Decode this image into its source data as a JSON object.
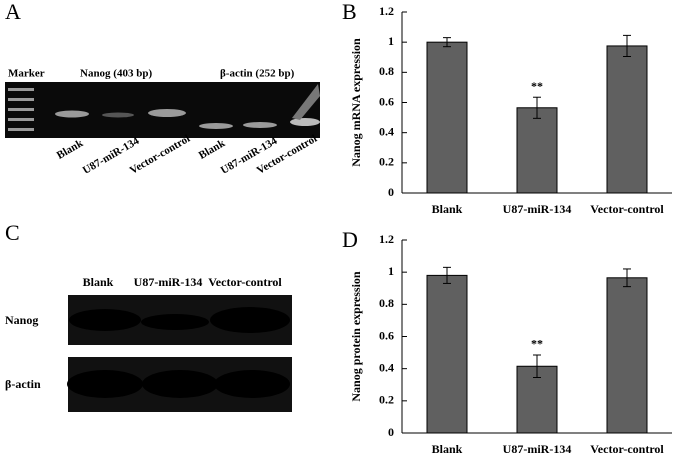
{
  "panels": {
    "A": {
      "letter": "A",
      "marker": "Marker",
      "gene1": "Nanog (403 bp)",
      "gene2": "β-actin (252 bp)",
      "lanes": [
        "Blank",
        "U87-miR-134",
        "Vector-control",
        "Blank",
        "U87-miR-134",
        "Vector-control"
      ]
    },
    "C": {
      "letter": "C",
      "lanes": [
        "Blank",
        "U87-miR-134",
        "Vector-control"
      ],
      "rows": [
        "Nanog",
        "β-actin"
      ]
    }
  },
  "chart_data": [
    {
      "type": "bar",
      "panel_label": "B",
      "y_label": "Nanog mRNA expression",
      "categories": [
        "Blank",
        "U87-miR-134",
        "Vector-control"
      ],
      "values": [
        1.0,
        0.565,
        0.975
      ],
      "errors": [
        0.03,
        0.07,
        0.07
      ],
      "annotations": [
        null,
        "**",
        null
      ],
      "color": "#606060",
      "ylim": [
        0,
        1.2
      ],
      "yticks": [
        0,
        0.2,
        0.4,
        0.6,
        0.8,
        1,
        1.2
      ]
    },
    {
      "type": "bar",
      "panel_label": "D",
      "y_label": "Nanog protein expression",
      "categories": [
        "Blank",
        "U87-miR-134",
        "Vector-control"
      ],
      "values": [
        0.98,
        0.415,
        0.965
      ],
      "errors": [
        0.05,
        0.07,
        0.055
      ],
      "annotations": [
        null,
        "**",
        null
      ],
      "color": "#606060",
      "ylim": [
        0,
        1.2
      ],
      "yticks": [
        0,
        0.2,
        0.4,
        0.6,
        0.8,
        1,
        1.2
      ]
    }
  ]
}
